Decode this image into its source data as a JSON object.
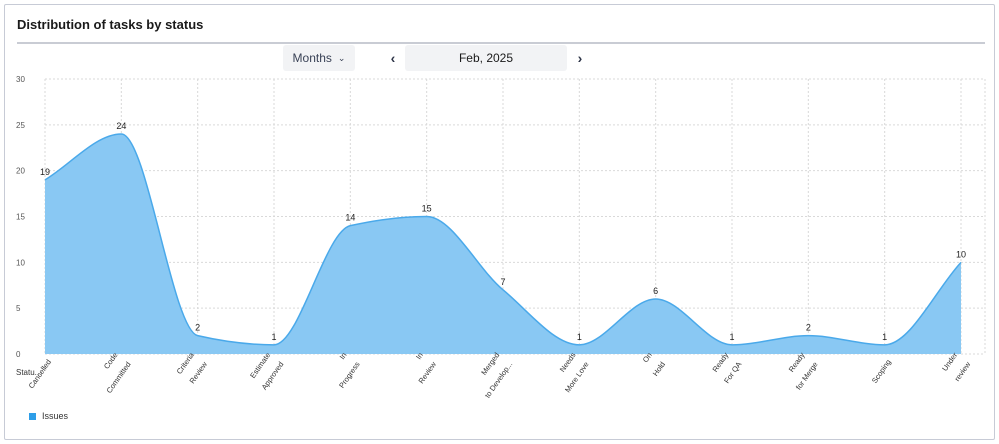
{
  "card": {
    "title": "Distribution of tasks by status"
  },
  "controls": {
    "period_select": "Months",
    "period_chevron": "⌄",
    "prev_icon": "‹",
    "next_icon": "›",
    "current_date": "Feb, 2025"
  },
  "colors": {
    "area_fill": "#89c8f3",
    "area_stroke": "#4aa9ea",
    "legend_swatch": "#2e9ee8",
    "grid": "#d9d9d9"
  },
  "chart_data": {
    "type": "area",
    "title": "Distribution of tasks by status",
    "xlabel": "Statu...",
    "ylabel": "",
    "ylim": [
      0,
      30
    ],
    "yticks": [
      0,
      5,
      10,
      15,
      20,
      25,
      30
    ],
    "grid": true,
    "legend_position": "bottom-left",
    "categories": [
      "Cancelled",
      "Code Committed",
      "Criteria Review",
      "Estimate Approved",
      "In Progress",
      "In Review",
      "Merged to Develop...",
      "Needs More Love",
      "On Hold",
      "Ready For QA",
      "Ready for Merge",
      "Scoping",
      "Under review"
    ],
    "category_lines": [
      [
        "Cancelled"
      ],
      [
        "Code",
        "Committed"
      ],
      [
        "Criteria",
        "Review"
      ],
      [
        "Estimate",
        "Approved"
      ],
      [
        "In",
        "Progress"
      ],
      [
        "In",
        "Review"
      ],
      [
        "Merged",
        "to Develop..."
      ],
      [
        "Needs",
        "More Love"
      ],
      [
        "On",
        "Hold"
      ],
      [
        "Ready",
        "For QA"
      ],
      [
        "Ready",
        "for Merge"
      ],
      [
        "Scoping"
      ],
      [
        "Under",
        "review"
      ]
    ],
    "series": [
      {
        "name": "Issues",
        "values": [
          19,
          24,
          2,
          1,
          14,
          15,
          7,
          1,
          6,
          1,
          2,
          1,
          10
        ]
      }
    ]
  }
}
